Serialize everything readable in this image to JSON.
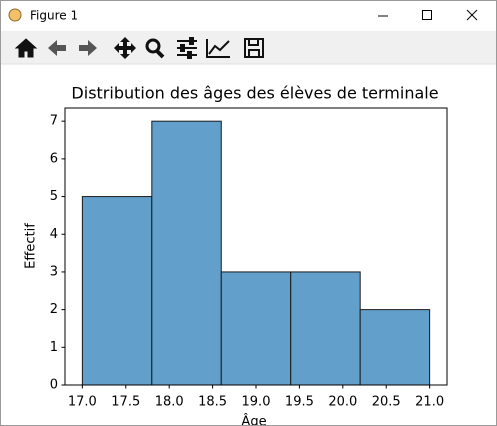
{
  "window": {
    "title": "Figure 1"
  },
  "chart_data": {
    "type": "histogram",
    "title": "Distribution des âges des élèves de terminale",
    "xlabel": "Âge",
    "ylabel": "Effectif",
    "bins": [
      17.0,
      17.8,
      18.6,
      19.4,
      20.2,
      21.0
    ],
    "values": [
      5,
      7,
      3,
      3,
      2
    ],
    "color": "#62a0cb",
    "edgecolor": "#1a1a1a",
    "xlim": [
      16.8,
      21.2
    ],
    "xticks": [
      {
        "value": 17,
        "label": "17.0"
      },
      {
        "value": 17.5,
        "label": "17.5"
      },
      {
        "value": 18,
        "label": "18.0"
      },
      {
        "value": 18.5,
        "label": "18.5"
      },
      {
        "value": 19,
        "label": "19.0"
      },
      {
        "value": 19.5,
        "label": "19.5"
      },
      {
        "value": 20,
        "label": "20.0"
      },
      {
        "value": 20.5,
        "label": "20.5"
      },
      {
        "value": 21,
        "label": "21.0"
      }
    ],
    "ylim": [
      0,
      7.35
    ],
    "yticks": [
      0,
      1,
      2,
      3,
      4,
      5,
      6,
      7
    ],
    "grid": false
  }
}
